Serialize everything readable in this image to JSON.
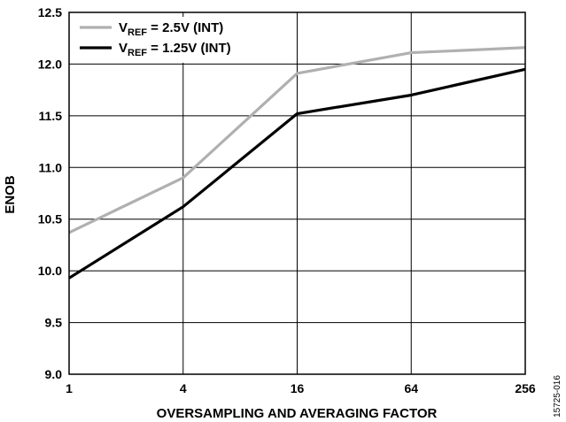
{
  "chart_data": {
    "type": "line",
    "xlabel": "OVERSAMPLING AND AVERAGING FACTOR",
    "ylabel": "ENOB",
    "categories": [
      "1",
      "4",
      "16",
      "64",
      "256"
    ],
    "x": [
      1,
      4,
      16,
      64,
      256
    ],
    "xscale": "log4",
    "ylim": [
      9.0,
      12.5
    ],
    "yticks": [
      "9.0",
      "9.5",
      "10.0",
      "10.5",
      "11.0",
      "11.5",
      "12.0",
      "12.5"
    ],
    "grid": true,
    "legend_position": "top-left",
    "series": [
      {
        "name_main": "V",
        "name_sub": "REF",
        "name_rest": " = 2.5V (INT)",
        "color": "#b0b0b0",
        "values": [
          10.37,
          10.9,
          11.91,
          12.11,
          12.16
        ]
      },
      {
        "name_main": "V",
        "name_sub": "REF",
        "name_rest": " = 1.25V (INT)",
        "color": "#000000",
        "values": [
          9.93,
          10.62,
          11.52,
          11.7,
          11.95
        ]
      }
    ]
  },
  "figure_id": "15725-016"
}
